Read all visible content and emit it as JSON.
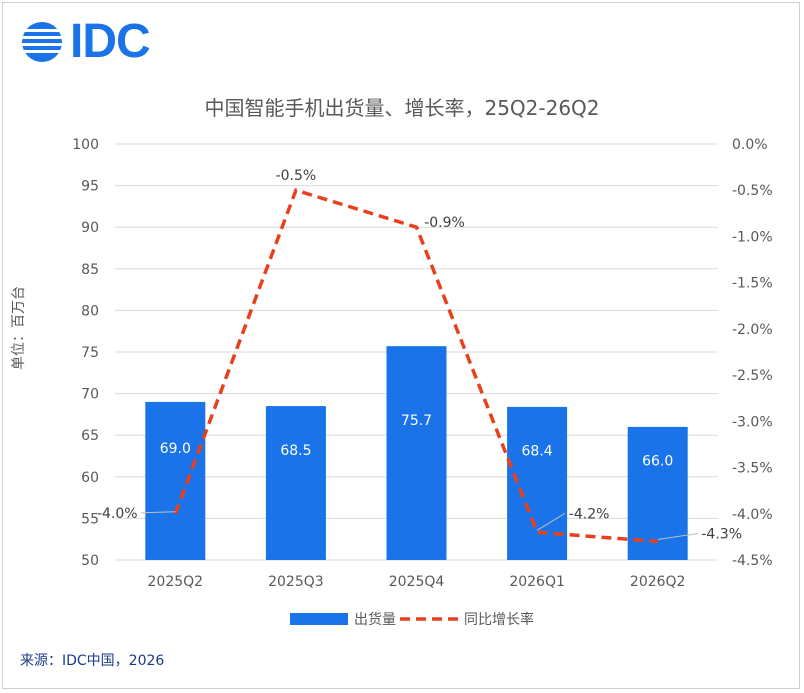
{
  "logo": {
    "text": "IDC"
  },
  "source": "来源：IDC中国，2026",
  "chart_data": {
    "type": "bar",
    "title": "中国智能手机出货量、增长率，25Q2-26Q2",
    "ylabel": "单位：百万台",
    "categories": [
      "2025Q2",
      "2025Q3",
      "2025Q4",
      "2026Q1",
      "2026Q2"
    ],
    "ylim": [
      50,
      100
    ],
    "yticks": [
      50,
      55,
      60,
      65,
      70,
      75,
      80,
      85,
      90,
      95,
      100
    ],
    "y2lim": [
      -4.5,
      0
    ],
    "y2ticks": [
      "0.0%",
      "-0.5%",
      "-1.0%",
      "-1.5%",
      "-2.0%",
      "-2.5%",
      "-3.0%",
      "-3.5%",
      "-4.0%",
      "-4.5%"
    ],
    "y2tick_values": [
      0,
      -0.5,
      -1.0,
      -1.5,
      -2.0,
      -2.5,
      -3.0,
      -3.5,
      -4.0,
      -4.5
    ],
    "series": [
      {
        "name": "出货量",
        "type": "bar",
        "color": "#1a73e8",
        "values": [
          69.0,
          68.5,
          75.7,
          68.4,
          66.0
        ],
        "labels": [
          "69.0",
          "68.5",
          "75.7",
          "68.4",
          "66.0"
        ]
      },
      {
        "name": "同比增长率",
        "type": "line",
        "style": "dashed",
        "color": "#e8401c",
        "axis": "secondary",
        "values": [
          -4.0,
          -0.5,
          -0.9,
          -4.2,
          -4.3
        ],
        "labels": [
          "-4.0%",
          "-0.5%",
          "-0.9%",
          "-4.2%",
          "-4.3%"
        ]
      }
    ],
    "grid": true,
    "legend": "bottom"
  }
}
